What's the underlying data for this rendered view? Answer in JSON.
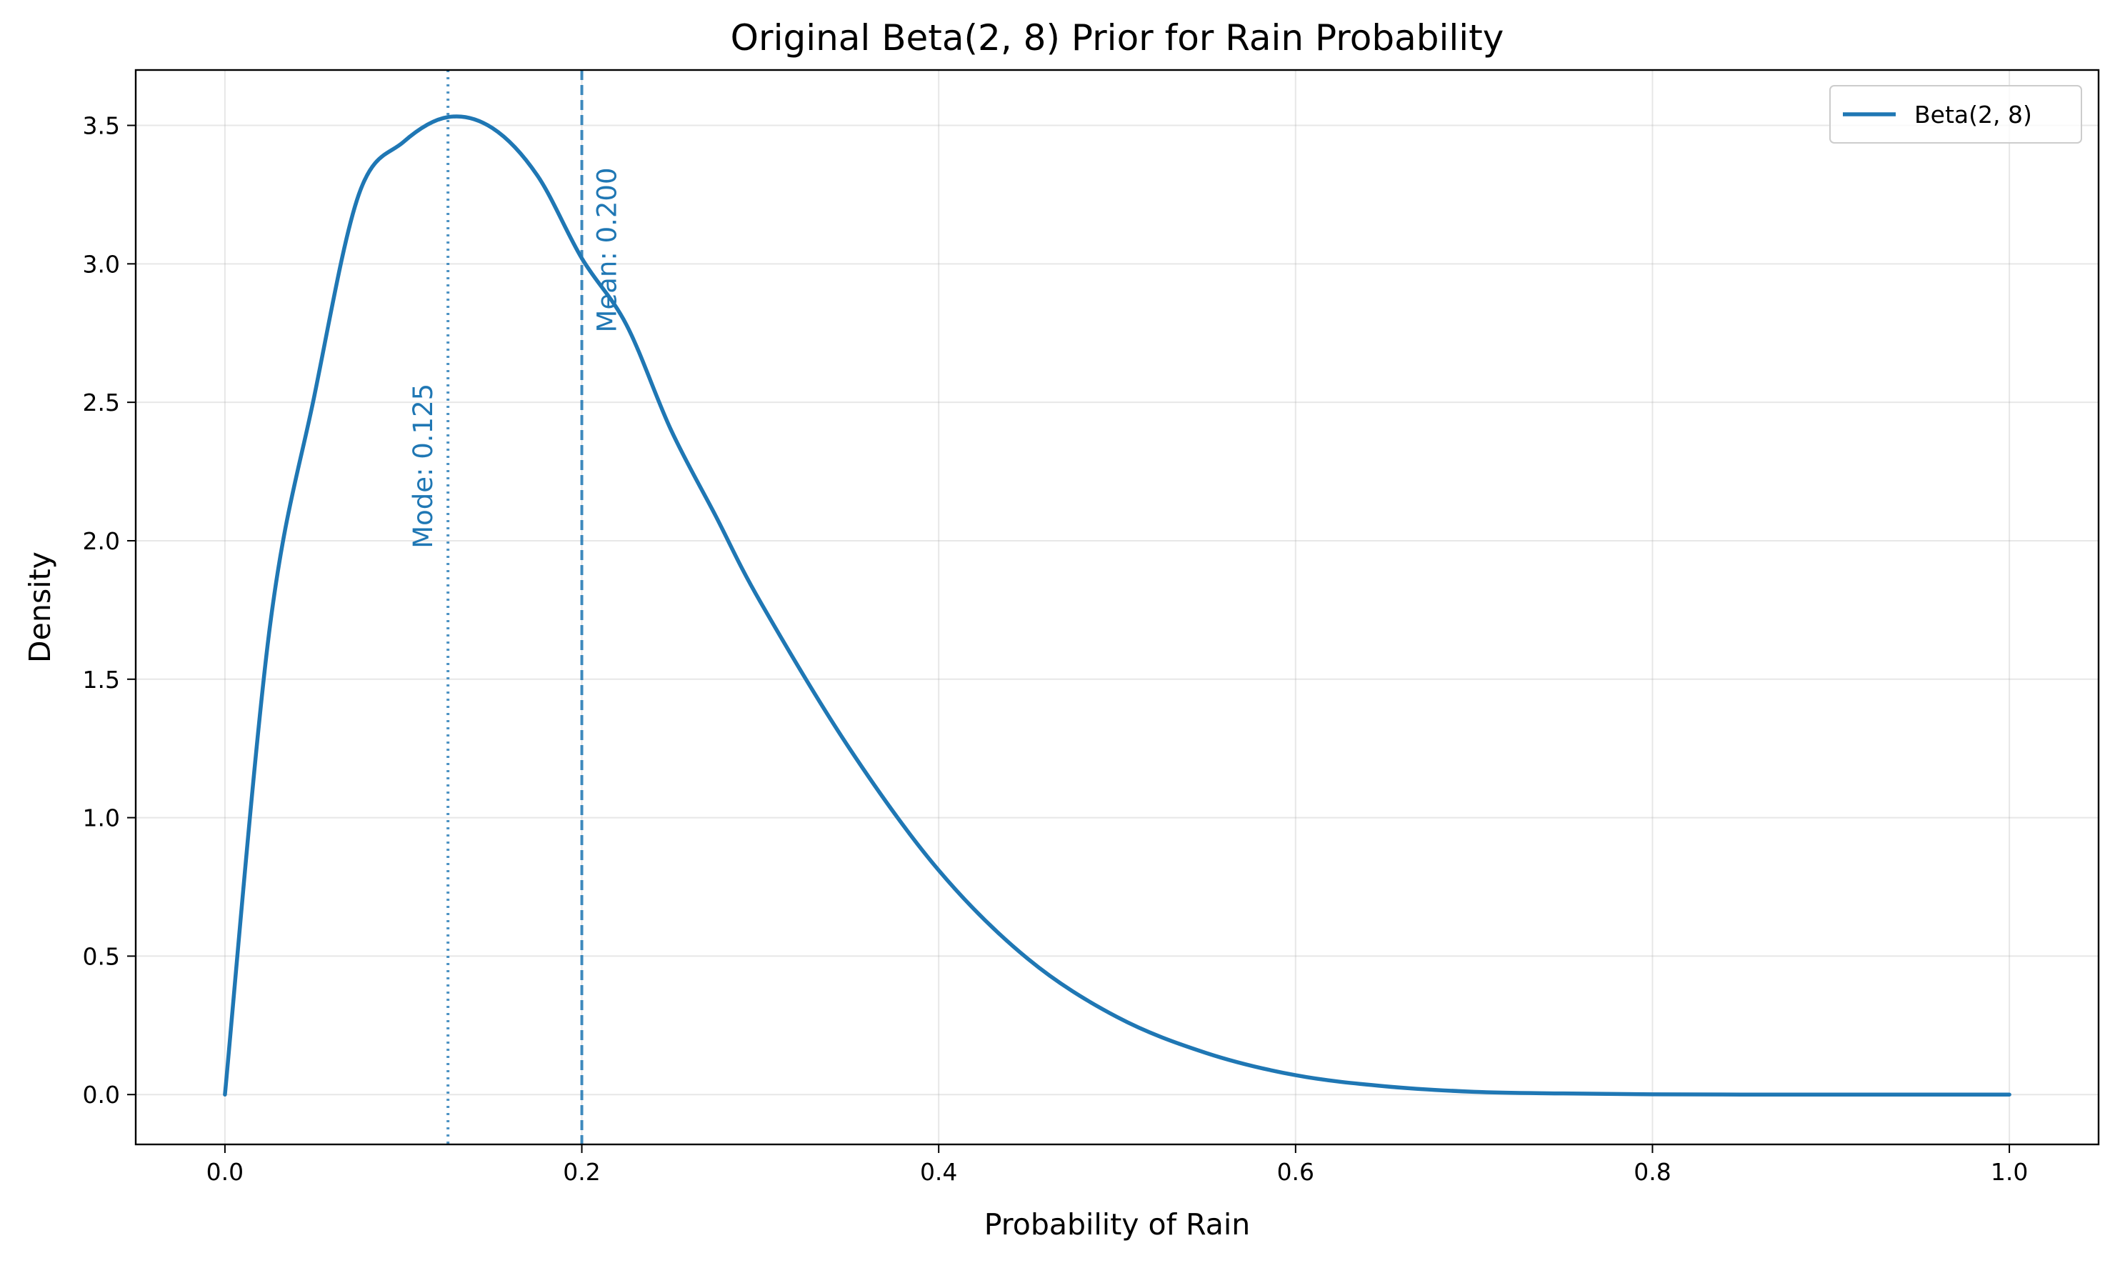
{
  "chart_data": {
    "type": "line",
    "title": "Original Beta(2, 8) Prior for Rain Probability",
    "xlabel": "Probability of Rain",
    "ylabel": "Density",
    "xlim": [
      -0.05,
      1.05
    ],
    "ylim": [
      -0.18,
      3.7
    ],
    "xticks": [
      0.0,
      0.2,
      0.4,
      0.6,
      0.8,
      1.0
    ],
    "xtick_labels": [
      "0.0",
      "0.2",
      "0.4",
      "0.6",
      "0.8",
      "1.0"
    ],
    "yticks": [
      0.0,
      0.5,
      1.0,
      1.5,
      2.0,
      2.5,
      3.0,
      3.5
    ],
    "ytick_labels": [
      "0.0",
      "0.5",
      "1.0",
      "1.5",
      "2.0",
      "2.5",
      "3.0",
      "3.5"
    ],
    "grid": true,
    "legend_position": "top-right",
    "series": [
      {
        "name": "Beta(2, 8)",
        "color": "#1f77b4",
        "x": [
          0.0,
          0.025,
          0.05,
          0.075,
          0.1,
          0.125,
          0.15,
          0.175,
          0.2,
          0.225,
          0.25,
          0.275,
          0.3,
          0.35,
          0.4,
          0.45,
          0.5,
          0.55,
          0.6,
          0.65,
          0.7,
          0.75,
          0.8,
          0.85,
          0.9,
          0.95,
          1.0
        ],
        "y": [
          0.0,
          1.68,
          2.52,
          3.25,
          3.44,
          3.53,
          3.49,
          3.32,
          3.02,
          2.78,
          2.4,
          2.09,
          1.78,
          1.25,
          0.81,
          0.49,
          0.28,
          0.15,
          0.07,
          0.03,
          0.01,
          0.004,
          0.001,
          0.0,
          0.0,
          0.0,
          0.0
        ]
      }
    ],
    "vlines": [
      {
        "name": "mode",
        "x": 0.125,
        "style": "dotted",
        "label": "Mode: 0.125",
        "label_y": 2.27
      },
      {
        "name": "mean",
        "x": 0.2,
        "style": "dashed",
        "label": "Mean: 0.200",
        "label_y": 3.05
      }
    ]
  }
}
